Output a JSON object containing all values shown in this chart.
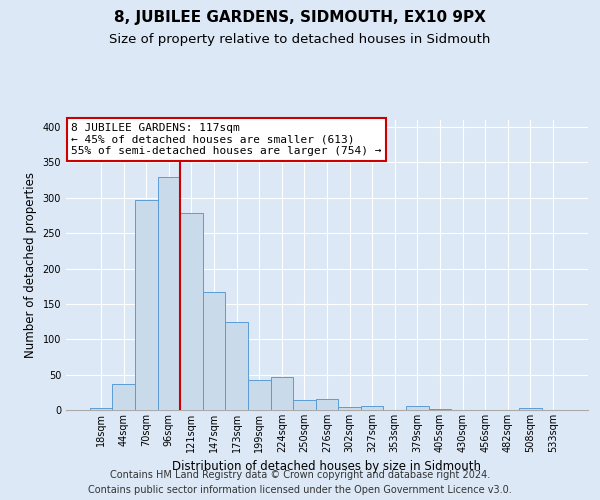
{
  "title": "8, JUBILEE GARDENS, SIDMOUTH, EX10 9PX",
  "subtitle": "Size of property relative to detached houses in Sidmouth",
  "xlabel": "Distribution of detached houses by size in Sidmouth",
  "ylabel": "Number of detached properties",
  "bin_labels": [
    "18sqm",
    "44sqm",
    "70sqm",
    "96sqm",
    "121sqm",
    "147sqm",
    "173sqm",
    "199sqm",
    "224sqm",
    "250sqm",
    "276sqm",
    "302sqm",
    "327sqm",
    "353sqm",
    "379sqm",
    "405sqm",
    "430sqm",
    "456sqm",
    "482sqm",
    "508sqm",
    "533sqm"
  ],
  "bar_heights": [
    3,
    37,
    297,
    329,
    279,
    167,
    124,
    43,
    46,
    14,
    16,
    4,
    5,
    0,
    6,
    1,
    0,
    0,
    0,
    3,
    0
  ],
  "bar_color": "#c9daea",
  "bar_edgecolor": "#5b9bd5",
  "vline_color": "#cc0000",
  "vline_bin_index": 4,
  "annotation_line1": "8 JUBILEE GARDENS: 117sqm",
  "annotation_line2": "← 45% of detached houses are smaller (613)",
  "annotation_line3": "55% of semi-detached houses are larger (754) →",
  "annotation_box_edgecolor": "#cc0000",
  "annotation_box_facecolor": "#ffffff",
  "footer_line1": "Contains HM Land Registry data © Crown copyright and database right 2024.",
  "footer_line2": "Contains public sector information licensed under the Open Government Licence v3.0.",
  "ylim": [
    0,
    410
  ],
  "background_color": "#dce8f5",
  "plot_background_color": "#dce8f5",
  "title_fontsize": 11,
  "subtitle_fontsize": 9.5,
  "axis_label_fontsize": 8.5,
  "tick_fontsize": 7,
  "annotation_fontsize": 8,
  "footer_fontsize": 7
}
